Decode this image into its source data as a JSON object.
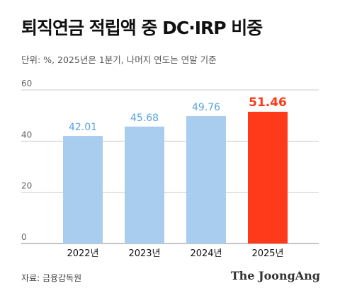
{
  "title": "퇴직연금 적립액 중 DC·IRP 비중",
  "subtitle": "단위: %, 2025년은 1분기, 나머지 연도는 연말 기준",
  "source": "자료: 금융감독원",
  "brand": "The JoongAng",
  "colors": {
    "bar": "#a9cdef",
    "bar_label": "#5aa2e0",
    "highlight_bar": "#ff3a1a",
    "highlight_label": "#ff3a1a",
    "grid": "#cccccc",
    "axis": "#888888"
  },
  "chart_data": {
    "type": "bar",
    "categories": [
      "2022년",
      "2023년",
      "2024년",
      "2025년"
    ],
    "values": [
      42.01,
      45.68,
      49.76,
      51.46
    ],
    "value_labels": [
      "42.01",
      "45.68",
      "49.76",
      "51.46"
    ],
    "highlight_index": 3,
    "ylim": [
      0,
      60
    ],
    "yticks": [
      0,
      20,
      40,
      60
    ],
    "ytick_labels": [
      "0",
      "20",
      "40",
      "60"
    ],
    "grid": true,
    "title": "퇴직연금 적립액 중 DC·IRP 비중",
    "xlabel": "",
    "ylabel": ""
  }
}
